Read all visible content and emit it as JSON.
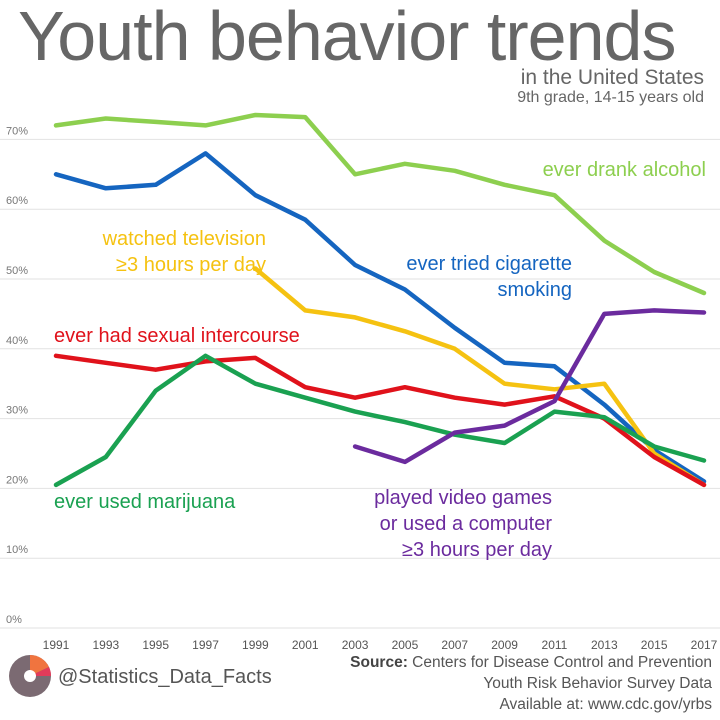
{
  "header": {
    "title": "Youth behavior trends",
    "subtitle": "in the United States",
    "subtitle2": "9th grade, 14-15 years old"
  },
  "footer": {
    "handle": "@Statistics_Data_Facts",
    "source_label": "Source:",
    "source_text": "Centers for Disease Control and Prevention",
    "source_line2": "Youth Risk Behavior Survey Data",
    "source_line3": "Available at: www.cdc.gov/yrbs"
  },
  "chart_data": {
    "type": "line",
    "title": "Youth behavior trends",
    "xlabel": "",
    "ylabel": "",
    "ylim": [
      0,
      75
    ],
    "y_ticks": [
      0,
      10,
      20,
      30,
      40,
      50,
      60,
      70
    ],
    "y_tick_labels": [
      "0%",
      "10%",
      "20%",
      "30%",
      "40%",
      "50%",
      "60%",
      "70%"
    ],
    "x": [
      1991,
      1993,
      1995,
      1997,
      1999,
      2001,
      2003,
      2005,
      2007,
      2009,
      2011,
      2013,
      2015,
      2017
    ],
    "x_tick_labels": [
      "1991",
      "1993",
      "1995",
      "1997",
      "1999",
      "2001",
      "2003",
      "2005",
      "2007",
      "2009",
      "2011",
      "2013",
      "2015",
      "2017"
    ],
    "grid": true,
    "series": [
      {
        "name": "ever drank alcohol",
        "label_lines": [
          "ever drank alcohol"
        ],
        "color": "#8dcf4f",
        "values": [
          72,
          73,
          72.5,
          72,
          73.5,
          73.2,
          65,
          66.5,
          65.5,
          63.5,
          62,
          55.5,
          51,
          48
        ]
      },
      {
        "name": "ever tried cigarette smoking",
        "label_lines": [
          "ever tried cigarette",
          "smoking"
        ],
        "color": "#1565c0",
        "values": [
          65,
          63,
          63.5,
          68,
          62,
          58.5,
          52,
          48.5,
          43,
          38,
          37.5,
          32,
          25.5,
          21
        ]
      },
      {
        "name": "watched television ≥3 hours per day",
        "label_lines": [
          "watched television",
          "≥3 hours per day"
        ],
        "color": "#f5c211",
        "values": [
          null,
          null,
          null,
          null,
          51.5,
          45.5,
          44.5,
          42.5,
          40,
          35,
          34.2,
          35,
          25,
          20.5
        ]
      },
      {
        "name": "ever had sexual intercourse",
        "label_lines": [
          "ever had sexual intercourse"
        ],
        "color": "#e0121b",
        "values": [
          39,
          38,
          37,
          38.2,
          38.7,
          34.5,
          33,
          34.5,
          33,
          32,
          33.2,
          30,
          24.5,
          20.5
        ]
      },
      {
        "name": "ever used marijuana",
        "label_lines": [
          "ever used marijuana"
        ],
        "color": "#1aa151",
        "values": [
          20.5,
          24.5,
          34,
          39,
          35,
          33,
          31,
          29.5,
          27.7,
          26.5,
          31,
          30.2,
          26,
          24
        ]
      },
      {
        "name": "played video games or used a computer ≥3 hours per day",
        "label_lines": [
          "played video games",
          "or used a computer",
          "≥3 hours per day"
        ],
        "color": "#6b2b9e",
        "values": [
          null,
          null,
          null,
          null,
          null,
          null,
          26,
          23.8,
          28,
          29,
          32.5,
          45,
          45.5,
          45.2
        ]
      }
    ]
  }
}
